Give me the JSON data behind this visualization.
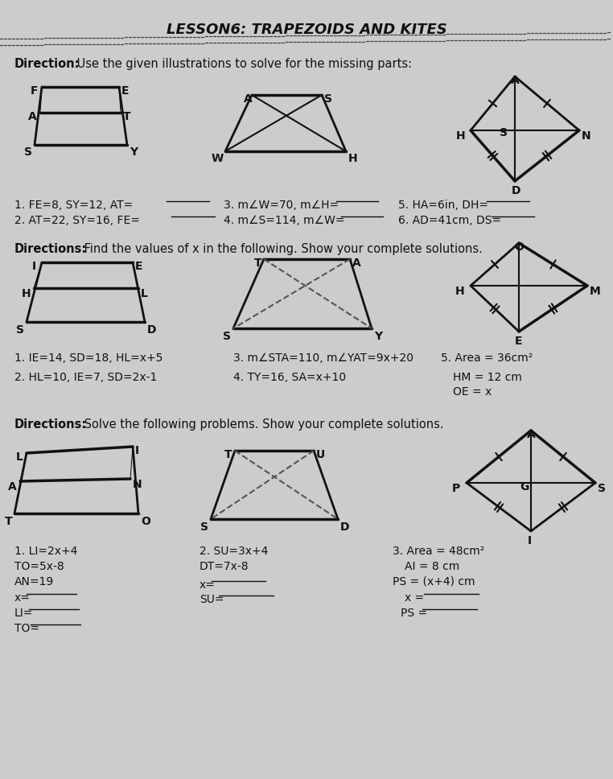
{
  "title": "LESSON6: TRAPEZOIDS AND KITES",
  "bg_color": "#cccccc",
  "text_color": "#111111",
  "s1_dir_bold": "Direction:",
  "s1_dir_rest": " Use the given illustrations to solve for the missing parts:",
  "s2_dir_bold": "Directions:",
  "s2_dir_rest": " Find the values of x in the following. Show your complete solutions.",
  "s3_dir_bold": "Directions:",
  "s3_dir_rest": " Solve the following problems. Show your complete solutions."
}
